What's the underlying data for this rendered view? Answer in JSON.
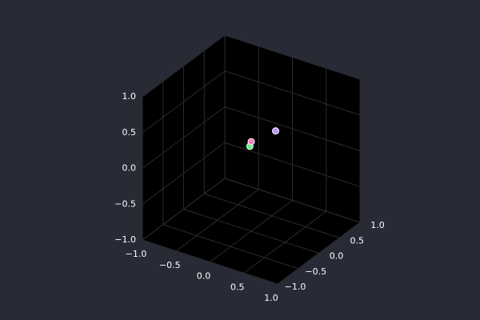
{
  "chart_data": {
    "type": "scatter",
    "title": "",
    "xlabel": "",
    "ylabel": "",
    "zlabel": "",
    "xlim": [
      -1.0,
      1.0
    ],
    "ylim": [
      -1.0,
      1.0
    ],
    "zlim": [
      -1.0,
      1.0
    ],
    "x_ticks": [
      "−1.0",
      "−0.5",
      "0.0",
      "0.5",
      "1.0"
    ],
    "y_ticks": [
      "−1.0",
      "−0.5",
      "0.0",
      "0.5",
      "1.0"
    ],
    "z_ticks": [
      "−1.0",
      "−0.5",
      "0.0",
      "0.5",
      "1.0"
    ],
    "grid": true,
    "legend": "none",
    "colors": {
      "background": "#282a36",
      "pane": "#000000",
      "grid": "#2b2b2b",
      "tick_text": "#ffffff"
    },
    "points": [
      {
        "x": -0.05,
        "y": 0.05,
        "z": 0.15,
        "color": "#50fa7b"
      },
      {
        "x": 0.0,
        "y": 0.0,
        "z": 0.25,
        "color": "#ff79c6"
      },
      {
        "x": 0.3,
        "y": 0.1,
        "z": 0.45,
        "color": "#bd93f9"
      }
    ]
  }
}
